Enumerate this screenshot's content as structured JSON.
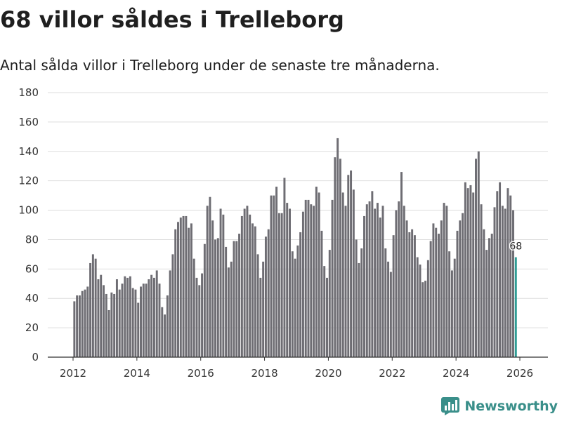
{
  "title": "68 villor såldes i Trelleborg",
  "subtitle": "Antal sålda villor i Trelleborg under de senaste tre månaderna.",
  "brand": {
    "name": "Newsworthy",
    "icon": "newsworthy-logo-icon",
    "color": "#3a8f8a"
  },
  "chart_data": {
    "type": "bar",
    "title": "68 villor såldes i Trelleborg",
    "xlabel": "",
    "ylabel": "",
    "ylim": [
      0,
      180
    ],
    "yticks": [
      0,
      20,
      40,
      60,
      80,
      100,
      120,
      140,
      160,
      180
    ],
    "xticks": [
      2012,
      2014,
      2016,
      2018,
      2020,
      2022,
      2024,
      2026
    ],
    "grid": true,
    "start_year": 2012,
    "start_month": 1,
    "bar_color": "#6e6d73",
    "highlight_color": "#2f9c95",
    "highlight_label": "68",
    "values": [
      38,
      42,
      42,
      45,
      46,
      48,
      64,
      70,
      67,
      53,
      56,
      49,
      43,
      32,
      44,
      43,
      53,
      46,
      50,
      55,
      54,
      55,
      47,
      46,
      37,
      48,
      50,
      50,
      53,
      56,
      54,
      59,
      50,
      34,
      29,
      42,
      59,
      70,
      87,
      92,
      95,
      96,
      96,
      88,
      91,
      67,
      54,
      49,
      57,
      77,
      103,
      109,
      93,
      80,
      81,
      101,
      97,
      75,
      61,
      65,
      79,
      79,
      84,
      96,
      101,
      103,
      97,
      91,
      89,
      70,
      54,
      65,
      82,
      87,
      110,
      110,
      116,
      98,
      98,
      122,
      105,
      101,
      72,
      67,
      76,
      85,
      99,
      107,
      107,
      104,
      103,
      116,
      112,
      86,
      62,
      54,
      73,
      107,
      136,
      149,
      135,
      112,
      103,
      124,
      127,
      114,
      80,
      64,
      74,
      96,
      104,
      106,
      113,
      101,
      105,
      95,
      103,
      74,
      65,
      58,
      83,
      100,
      106,
      126,
      103,
      93,
      85,
      87,
      83,
      68,
      63,
      51,
      52,
      66,
      79,
      91,
      88,
      84,
      93,
      105,
      103,
      72,
      59,
      67,
      86,
      93,
      98,
      119,
      115,
      117,
      112,
      135,
      140,
      104,
      87,
      73,
      81,
      84,
      102,
      113,
      119,
      103,
      101,
      115,
      110,
      100,
      68
    ]
  }
}
